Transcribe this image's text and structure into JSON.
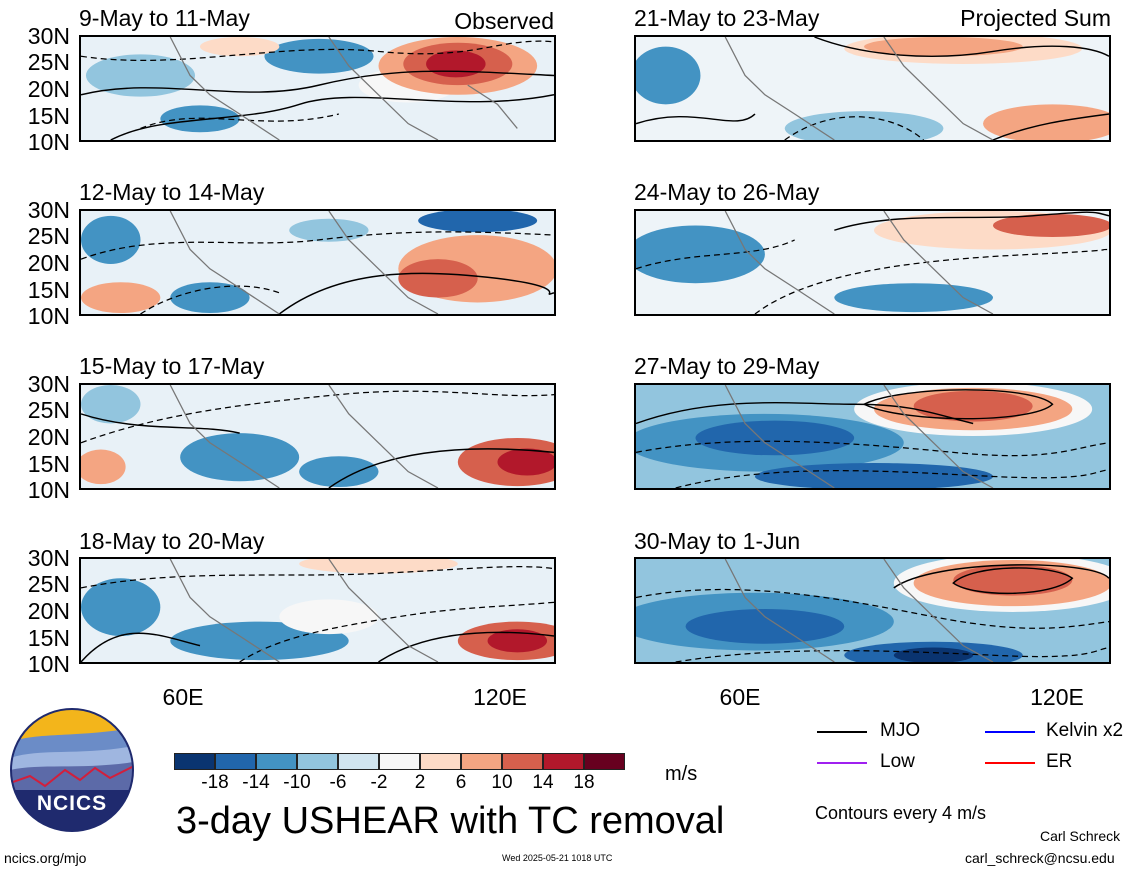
{
  "left_tag": "Observed",
  "right_tag": "Projected Sum",
  "panels": [
    {
      "title": "9-May to 11-May"
    },
    {
      "title": "21-May to 23-May"
    },
    {
      "title": "12-May to 14-May"
    },
    {
      "title": "24-May to 26-May"
    },
    {
      "title": "15-May to 17-May"
    },
    {
      "title": "27-May to 29-May"
    },
    {
      "title": "18-May to 20-May"
    },
    {
      "title": "30-May to 1-Jun"
    }
  ],
  "lat_labels": [
    "30N",
    "25N",
    "20N",
    "15N",
    "10N"
  ],
  "lon_labels": [
    "60E",
    "120E"
  ],
  "colorbar": {
    "labels": [
      "-18",
      "-14",
      "-10",
      "-6",
      "-2",
      "2",
      "6",
      "10",
      "14",
      "18"
    ],
    "colors": [
      "#0a3470",
      "#2166ac",
      "#4393c3",
      "#92c5de",
      "#d1e5f0",
      "#f7f7f7",
      "#fddbc7",
      "#f4a582",
      "#d6604d",
      "#b2182b",
      "#67001f"
    ],
    "units": "m/s"
  },
  "main_title": "3-day USHEAR with TC removal",
  "contour_key": [
    {
      "label": "MJO",
      "color": "#000000"
    },
    {
      "label": "Kelvin x2",
      "color": "#0000ff"
    },
    {
      "label": "Low",
      "color": "#a020f0"
    },
    {
      "label": "ER",
      "color": "#ff0000"
    }
  ],
  "contour_note": "Contours every 4 m/s",
  "logo_text": "NCICS",
  "website": "ncics.org/mjo",
  "timestamp": "Wed 2025-05-21 1018 UTC",
  "author": "Carl Schreck",
  "email": "carl_schreck@ncsu.edu"
}
